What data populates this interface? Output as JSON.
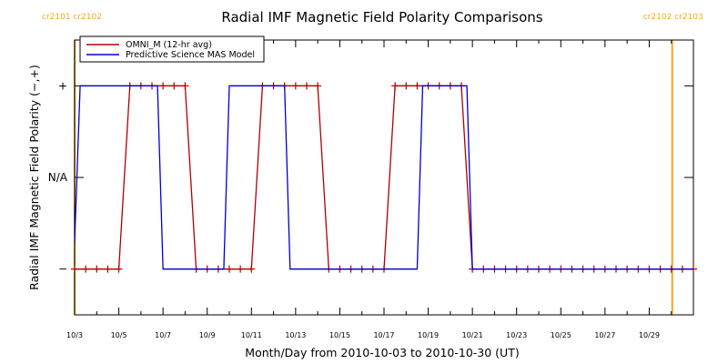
{
  "chart_data": {
    "type": "line",
    "title": "Radial IMF Magnetic Field Polarity Comparisons",
    "xlabel": "Month/Day from 2010-10-03 to 2010-10-30 (UT)",
    "ylabel": "Radial IMF Magnetic Field Polarity (−,+)",
    "x_start": "2010-10-03",
    "x_end": "2010-10-30",
    "xlim": [
      "2010-10-03T00:00",
      "2010-10-31T00:00"
    ],
    "ylim": [
      -1.5,
      1.5
    ],
    "y_ticks": [
      {
        "value": 1,
        "label": "+"
      },
      {
        "value": 0,
        "label": "N/A"
      },
      {
        "value": -1,
        "label": "−"
      }
    ],
    "x_ticks": [
      {
        "date": "2010-10-03",
        "label": "10/3"
      },
      {
        "date": "2010-10-05",
        "label": "10/5"
      },
      {
        "date": "2010-10-07",
        "label": "10/7"
      },
      {
        "date": "2010-10-09",
        "label": "10/9"
      },
      {
        "date": "2010-10-11",
        "label": "10/11"
      },
      {
        "date": "2010-10-13",
        "label": "10/13"
      },
      {
        "date": "2010-10-15",
        "label": "10/15"
      },
      {
        "date": "2010-10-17",
        "label": "10/17"
      },
      {
        "date": "2010-10-19",
        "label": "10/19"
      },
      {
        "date": "2010-10-21",
        "label": "10/21"
      },
      {
        "date": "2010-10-23",
        "label": "10/23"
      },
      {
        "date": "2010-10-25",
        "label": "10/25"
      },
      {
        "date": "2010-10-27",
        "label": "10/27"
      },
      {
        "date": "2010-10-29",
        "label": "10/29"
      }
    ],
    "carrington_markers": [
      {
        "date": "2010-10-03T00:00",
        "labels": [
          "cr2101",
          "cr2102"
        ],
        "color": "#f5a623"
      },
      {
        "date": "2010-10-30T01:00",
        "labels": [
          "cr2102",
          "cr2103"
        ],
        "color": "#f5a623"
      }
    ],
    "legend_position": "top-left",
    "grid": false,
    "series": [
      {
        "name": "OMNI_M (12-hr avg)",
        "color": "#b00000",
        "marker": "+",
        "points": [
          {
            "x": "2010-10-03T00:00",
            "y": -1
          },
          {
            "x": "2010-10-03T12:00",
            "y": -1
          },
          {
            "x": "2010-10-04T00:00",
            "y": -1
          },
          {
            "x": "2010-10-04T12:00",
            "y": -1
          },
          {
            "x": "2010-10-05T00:00",
            "y": -1
          },
          {
            "x": "2010-10-05T12:00",
            "y": 1
          },
          {
            "x": "2010-10-06T00:00",
            "y": 1
          },
          {
            "x": "2010-10-06T12:00",
            "y": 1
          },
          {
            "x": "2010-10-07T00:00",
            "y": 1
          },
          {
            "x": "2010-10-07T12:00",
            "y": 1
          },
          {
            "x": "2010-10-08T00:00",
            "y": 1
          },
          {
            "x": "2010-10-08T12:00",
            "y": -1
          },
          {
            "x": "2010-10-09T00:00",
            "y": -1
          },
          {
            "x": "2010-10-09T12:00",
            "y": -1
          },
          {
            "x": "2010-10-10T00:00",
            "y": -1
          },
          {
            "x": "2010-10-10T12:00",
            "y": -1
          },
          {
            "x": "2010-10-11T00:00",
            "y": -1
          },
          {
            "x": "2010-10-11T12:00",
            "y": 1
          },
          {
            "x": "2010-10-12T00:00",
            "y": 1
          },
          {
            "x": "2010-10-12T12:00",
            "y": 1
          },
          {
            "x": "2010-10-13T00:00",
            "y": 1
          },
          {
            "x": "2010-10-13T12:00",
            "y": 1
          },
          {
            "x": "2010-10-14T00:00",
            "y": 1
          },
          {
            "x": "2010-10-14T12:00",
            "y": -1
          },
          {
            "x": "2010-10-15T00:00",
            "y": -1
          },
          {
            "x": "2010-10-15T12:00",
            "y": -1
          },
          {
            "x": "2010-10-16T00:00",
            "y": -1
          },
          {
            "x": "2010-10-16T12:00",
            "y": -1
          },
          {
            "x": "2010-10-17T00:00",
            "y": -1
          },
          {
            "x": "2010-10-17T12:00",
            "y": 1
          },
          {
            "x": "2010-10-18T00:00",
            "y": 1
          },
          {
            "x": "2010-10-18T12:00",
            "y": 1
          },
          {
            "x": "2010-10-19T00:00",
            "y": 1
          },
          {
            "x": "2010-10-19T12:00",
            "y": 1
          },
          {
            "x": "2010-10-20T00:00",
            "y": 1
          },
          {
            "x": "2010-10-20T12:00",
            "y": 1
          },
          {
            "x": "2010-10-21T00:00",
            "y": -1
          },
          {
            "x": "2010-10-21T12:00",
            "y": -1
          },
          {
            "x": "2010-10-22T00:00",
            "y": -1
          },
          {
            "x": "2010-10-22T12:00",
            "y": -1
          },
          {
            "x": "2010-10-23T00:00",
            "y": -1
          },
          {
            "x": "2010-10-23T12:00",
            "y": -1
          },
          {
            "x": "2010-10-24T00:00",
            "y": -1
          },
          {
            "x": "2010-10-24T12:00",
            "y": -1
          },
          {
            "x": "2010-10-25T00:00",
            "y": -1
          },
          {
            "x": "2010-10-25T12:00",
            "y": -1
          },
          {
            "x": "2010-10-26T00:00",
            "y": -1
          },
          {
            "x": "2010-10-26T12:00",
            "y": -1
          },
          {
            "x": "2010-10-27T00:00",
            "y": -1
          },
          {
            "x": "2010-10-27T12:00",
            "y": -1
          },
          {
            "x": "2010-10-28T00:00",
            "y": -1
          },
          {
            "x": "2010-10-28T12:00",
            "y": -1
          },
          {
            "x": "2010-10-29T00:00",
            "y": -1
          },
          {
            "x": "2010-10-29T12:00",
            "y": -1
          },
          {
            "x": "2010-10-30T00:00",
            "y": -1
          },
          {
            "x": "2010-10-30T12:00",
            "y": -1
          },
          {
            "x": "2010-10-31T00:00",
            "y": -1
          }
        ]
      },
      {
        "name": "Predictive Science MAS Model",
        "color": "#0000cc",
        "marker": "none",
        "points": [
          {
            "x": "2010-10-03T00:00",
            "y": -0.7
          },
          {
            "x": "2010-10-03T06:00",
            "y": 1
          },
          {
            "x": "2010-10-06T18:00",
            "y": 1
          },
          {
            "x": "2010-10-07T00:00",
            "y": -1
          },
          {
            "x": "2010-10-09T18:00",
            "y": -1
          },
          {
            "x": "2010-10-10T00:00",
            "y": 1
          },
          {
            "x": "2010-10-12T12:00",
            "y": 1
          },
          {
            "x": "2010-10-12T18:00",
            "y": -1
          },
          {
            "x": "2010-10-18T12:00",
            "y": -1
          },
          {
            "x": "2010-10-18T18:00",
            "y": 1
          },
          {
            "x": "2010-10-20T18:00",
            "y": 1
          },
          {
            "x": "2010-10-21T00:00",
            "y": -1
          },
          {
            "x": "2010-10-31T00:00",
            "y": -1
          }
        ]
      }
    ]
  }
}
